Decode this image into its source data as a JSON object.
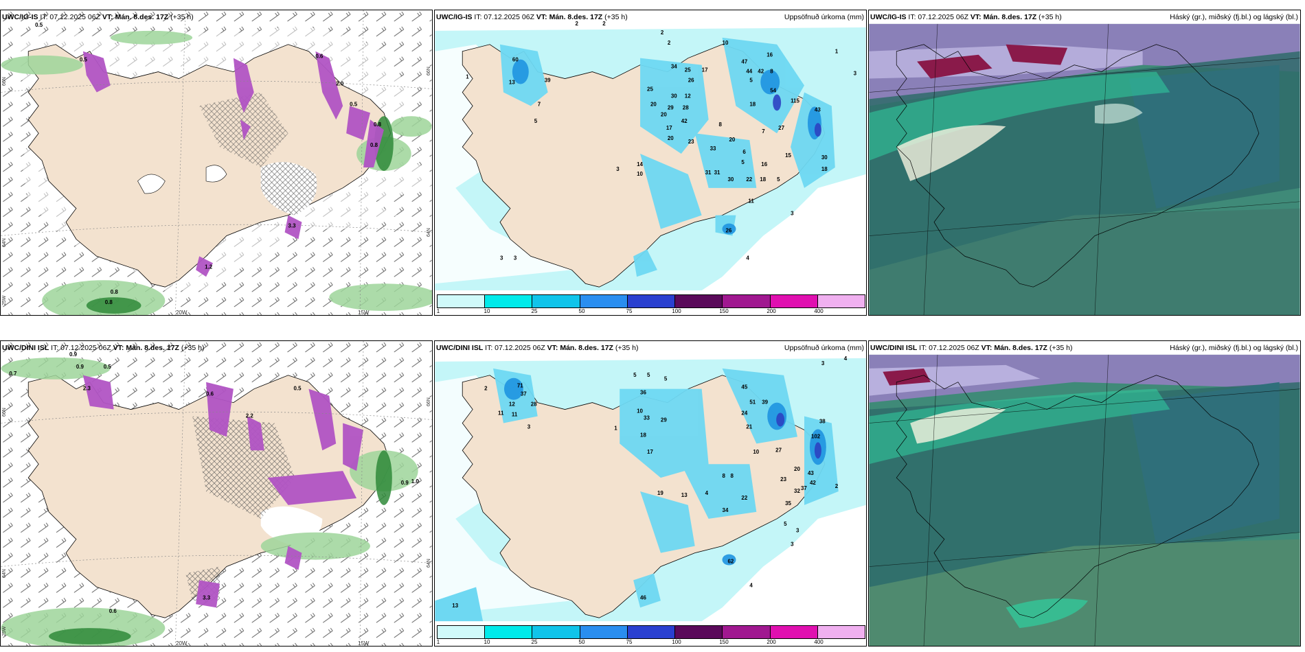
{
  "common": {
    "init_time": "IT: 07.12.2025 06Z",
    "valid_label": "VT: Mán. 8.des. 17Z",
    "lead": "(+35 h)"
  },
  "rows": [
    {
      "model": "UWC/IG-IS"
    },
    {
      "model": "UWC/DINI ISL"
    }
  ],
  "titles": {
    "precip": "Uppsöfnuð úrkoma (mm)",
    "clouds": "Háský (gr.), miðský (fj.bl.) og lágský (bl.)"
  },
  "axis_labels": {
    "lat_top": "66N",
    "lat_bottom": "64N",
    "lat_bottom2": "25W",
    "lat_right": "66N",
    "lat_right2": "64N",
    "lon_left": "20W",
    "lon_right": "15W"
  },
  "colorbar": {
    "ticks": [
      "1",
      "10",
      "25",
      "50",
      "75",
      "100",
      "150",
      "200",
      "400"
    ],
    "colors": [
      "#d0fafa",
      "#00eaea",
      "#10c4ea",
      "#2a8ef0",
      "#2a40d0",
      "#5a0a5a",
      "#a01890",
      "#e010b0",
      "#f0b0f0"
    ]
  },
  "wind_panel_values": {
    "top": [
      "0.5",
      "0.5",
      "0.8",
      "0.8",
      "0.6",
      "0.5",
      "0.8",
      "0.8",
      "2.0",
      "3.3",
      "1.2"
    ],
    "bottom": [
      "0.7",
      "0.9",
      "0.9",
      "0.5",
      "0.5",
      "2.3",
      "0.6",
      "2.2",
      "3.3",
      "0.9",
      "1.0",
      "0.6"
    ]
  },
  "precip_values": {
    "top": [
      "2",
      "2",
      "1",
      "2",
      "2",
      "10",
      "8",
      "16",
      "47",
      "44",
      "42",
      "5",
      "1",
      "3",
      "60",
      "13",
      "39",
      "20",
      "34",
      "25",
      "30",
      "26",
      "17",
      "25",
      "20",
      "29",
      "12",
      "28",
      "42",
      "17",
      "20",
      "23",
      "8",
      "18",
      "54",
      "115",
      "7",
      "27",
      "20",
      "33",
      "6",
      "5",
      "15",
      "43",
      "30",
      "18",
      "31",
      "31",
      "30",
      "22",
      "18",
      "5",
      "16",
      "14",
      "10",
      "3",
      "11",
      "3",
      "3",
      "3",
      "4",
      "5",
      "26",
      "7"
    ],
    "bottom": [
      "5",
      "5",
      "5",
      "3",
      "4",
      "2",
      "71",
      "12",
      "11",
      "28",
      "37",
      "11",
      "2",
      "3",
      "1",
      "10",
      "36",
      "33",
      "29",
      "18",
      "17",
      "45",
      "51",
      "39",
      "24",
      "21",
      "10",
      "27",
      "42",
      "38",
      "102",
      "43",
      "8",
      "8",
      "20",
      "23",
      "32",
      "37",
      "22",
      "35",
      "5",
      "13",
      "4",
      "3",
      "3",
      "2",
      "19",
      "34",
      "46",
      "62",
      "13",
      "4"
    ]
  }
}
